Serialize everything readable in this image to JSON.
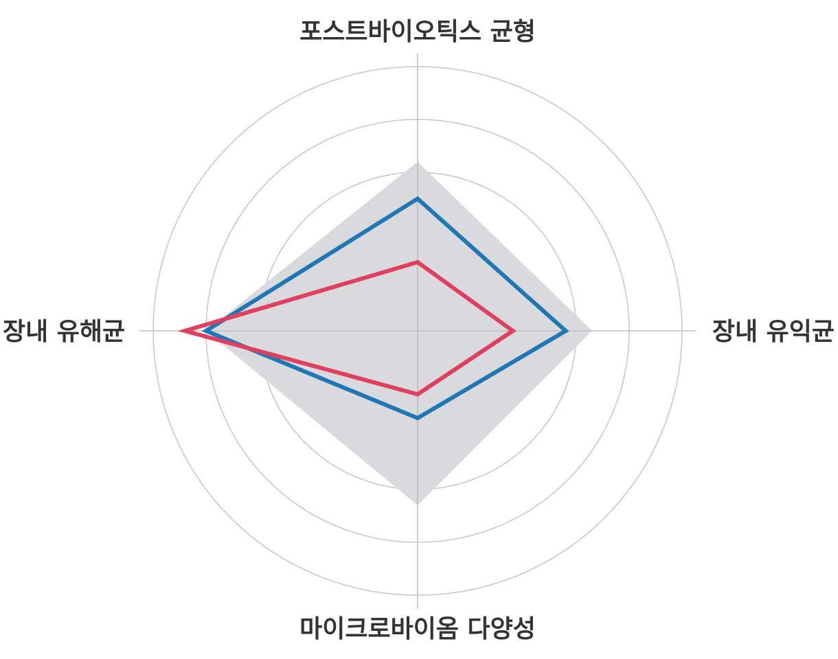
{
  "chart_data": {
    "type": "radar",
    "axes": [
      "포스트바이오틱스 균형",
      "장내 유익균",
      "마이크로바이옴 다양성",
      "장내 유해균"
    ],
    "r_max": 5,
    "rings": [
      1,
      2,
      3,
      4,
      5
    ],
    "grid": true,
    "legend": "none",
    "reference_area": {
      "values": [
        3.2,
        3.3,
        3.3,
        4.0
      ],
      "color": "#d9dadd"
    },
    "series": [
      {
        "values": [
          2.5,
          2.8,
          1.65,
          4.0
        ],
        "color": "#1f77b4"
      },
      {
        "values": [
          1.3,
          1.8,
          1.2,
          4.4
        ],
        "color": "#e0405f"
      }
    ]
  }
}
